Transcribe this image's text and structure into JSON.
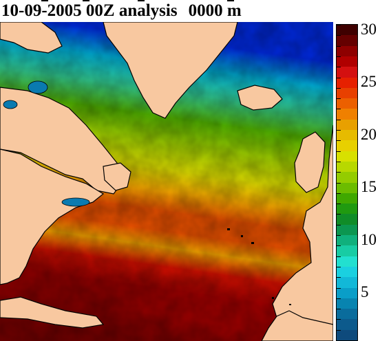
{
  "header": {
    "date": "10-09-2005",
    "cycle": "00Z analysis",
    "depth": "0000 m"
  },
  "colorbar": {
    "min": 1,
    "max": 30,
    "step": 1,
    "labels": [
      "30",
      "25",
      "20",
      "15",
      "10",
      "5"
    ],
    "colors": [
      "#3f0000",
      "#650000",
      "#8e0000",
      "#b00000",
      "#d41010",
      "#e62000",
      "#e84000",
      "#ec6000",
      "#f08000",
      "#e8a000",
      "#e6bb00",
      "#e8d000",
      "#d8e000",
      "#b8d800",
      "#94cc00",
      "#6cbc00",
      "#40a800",
      "#209a10",
      "#108c28",
      "#0c9650",
      "#10b07c",
      "#18cca4",
      "#22e0d0",
      "#1ad0e0",
      "#12b8d8",
      "#0a9ec8",
      "#0884b0",
      "#0a6c9c",
      "#0c5a8c",
      "#0e4a7c"
    ]
  },
  "map": {
    "ocean_scale": [
      [
        1,
        "#00004a"
      ],
      [
        3,
        "#0000a0"
      ],
      [
        5,
        "#0028d8"
      ],
      [
        7,
        "#0070c8"
      ],
      [
        9,
        "#00b0d8"
      ],
      [
        11,
        "#40e0e0"
      ],
      [
        13,
        "#30c890"
      ],
      [
        15,
        "#20a030"
      ],
      [
        17,
        "#50b000"
      ],
      [
        19,
        "#a0d000"
      ],
      [
        21,
        "#e0e000"
      ],
      [
        23,
        "#f0a000"
      ],
      [
        25,
        "#e85000"
      ],
      [
        27,
        "#d01000"
      ],
      [
        29,
        "#a00000"
      ],
      [
        30,
        "#7a0000"
      ]
    ],
    "land_color": "#f8c8a0"
  }
}
